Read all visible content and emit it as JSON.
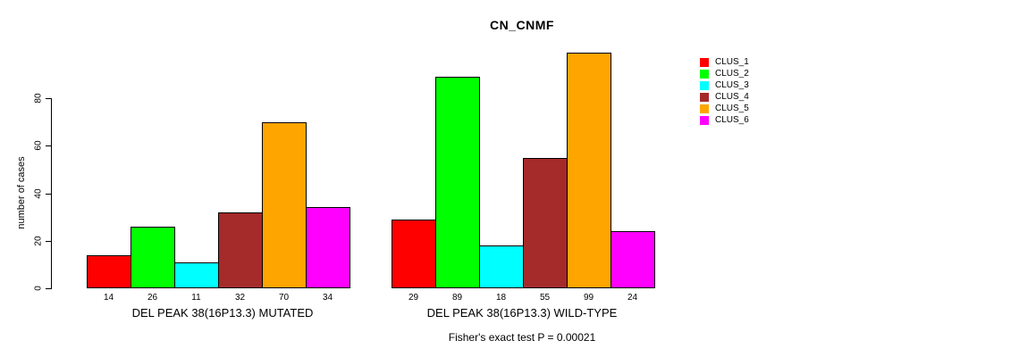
{
  "chart_data": {
    "type": "bar",
    "title": "CN_CNMF",
    "ylabel": "number of cases",
    "xlabel": "",
    "yticks": [
      0,
      20,
      40,
      60,
      80
    ],
    "ylim": [
      0,
      105
    ],
    "grid": false,
    "bar_outline_color": "#000000",
    "legend_position": "top-right",
    "series": [
      {
        "name": "CLUS_1",
        "color": "#FF0000"
      },
      {
        "name": "CLUS_2",
        "color": "#00FF00"
      },
      {
        "name": "CLUS_3",
        "color": "#00FFFF"
      },
      {
        "name": "CLUS_4",
        "color": "#A52A2A"
      },
      {
        "name": "CLUS_5",
        "color": "#FFA500"
      },
      {
        "name": "CLUS_6",
        "color": "#FF00FF"
      }
    ],
    "groups": [
      {
        "label": "DEL PEAK 38(16P13.3) MUTATED",
        "values": [
          14,
          26,
          11,
          32,
          70,
          34
        ]
      },
      {
        "label": "DEL PEAK 38(16P13.3) WILD-TYPE",
        "values": [
          29,
          89,
          18,
          55,
          99,
          24
        ]
      }
    ],
    "bar_value_labels_shown": true,
    "annotation": "Fisher's exact test P = 0.00021"
  }
}
